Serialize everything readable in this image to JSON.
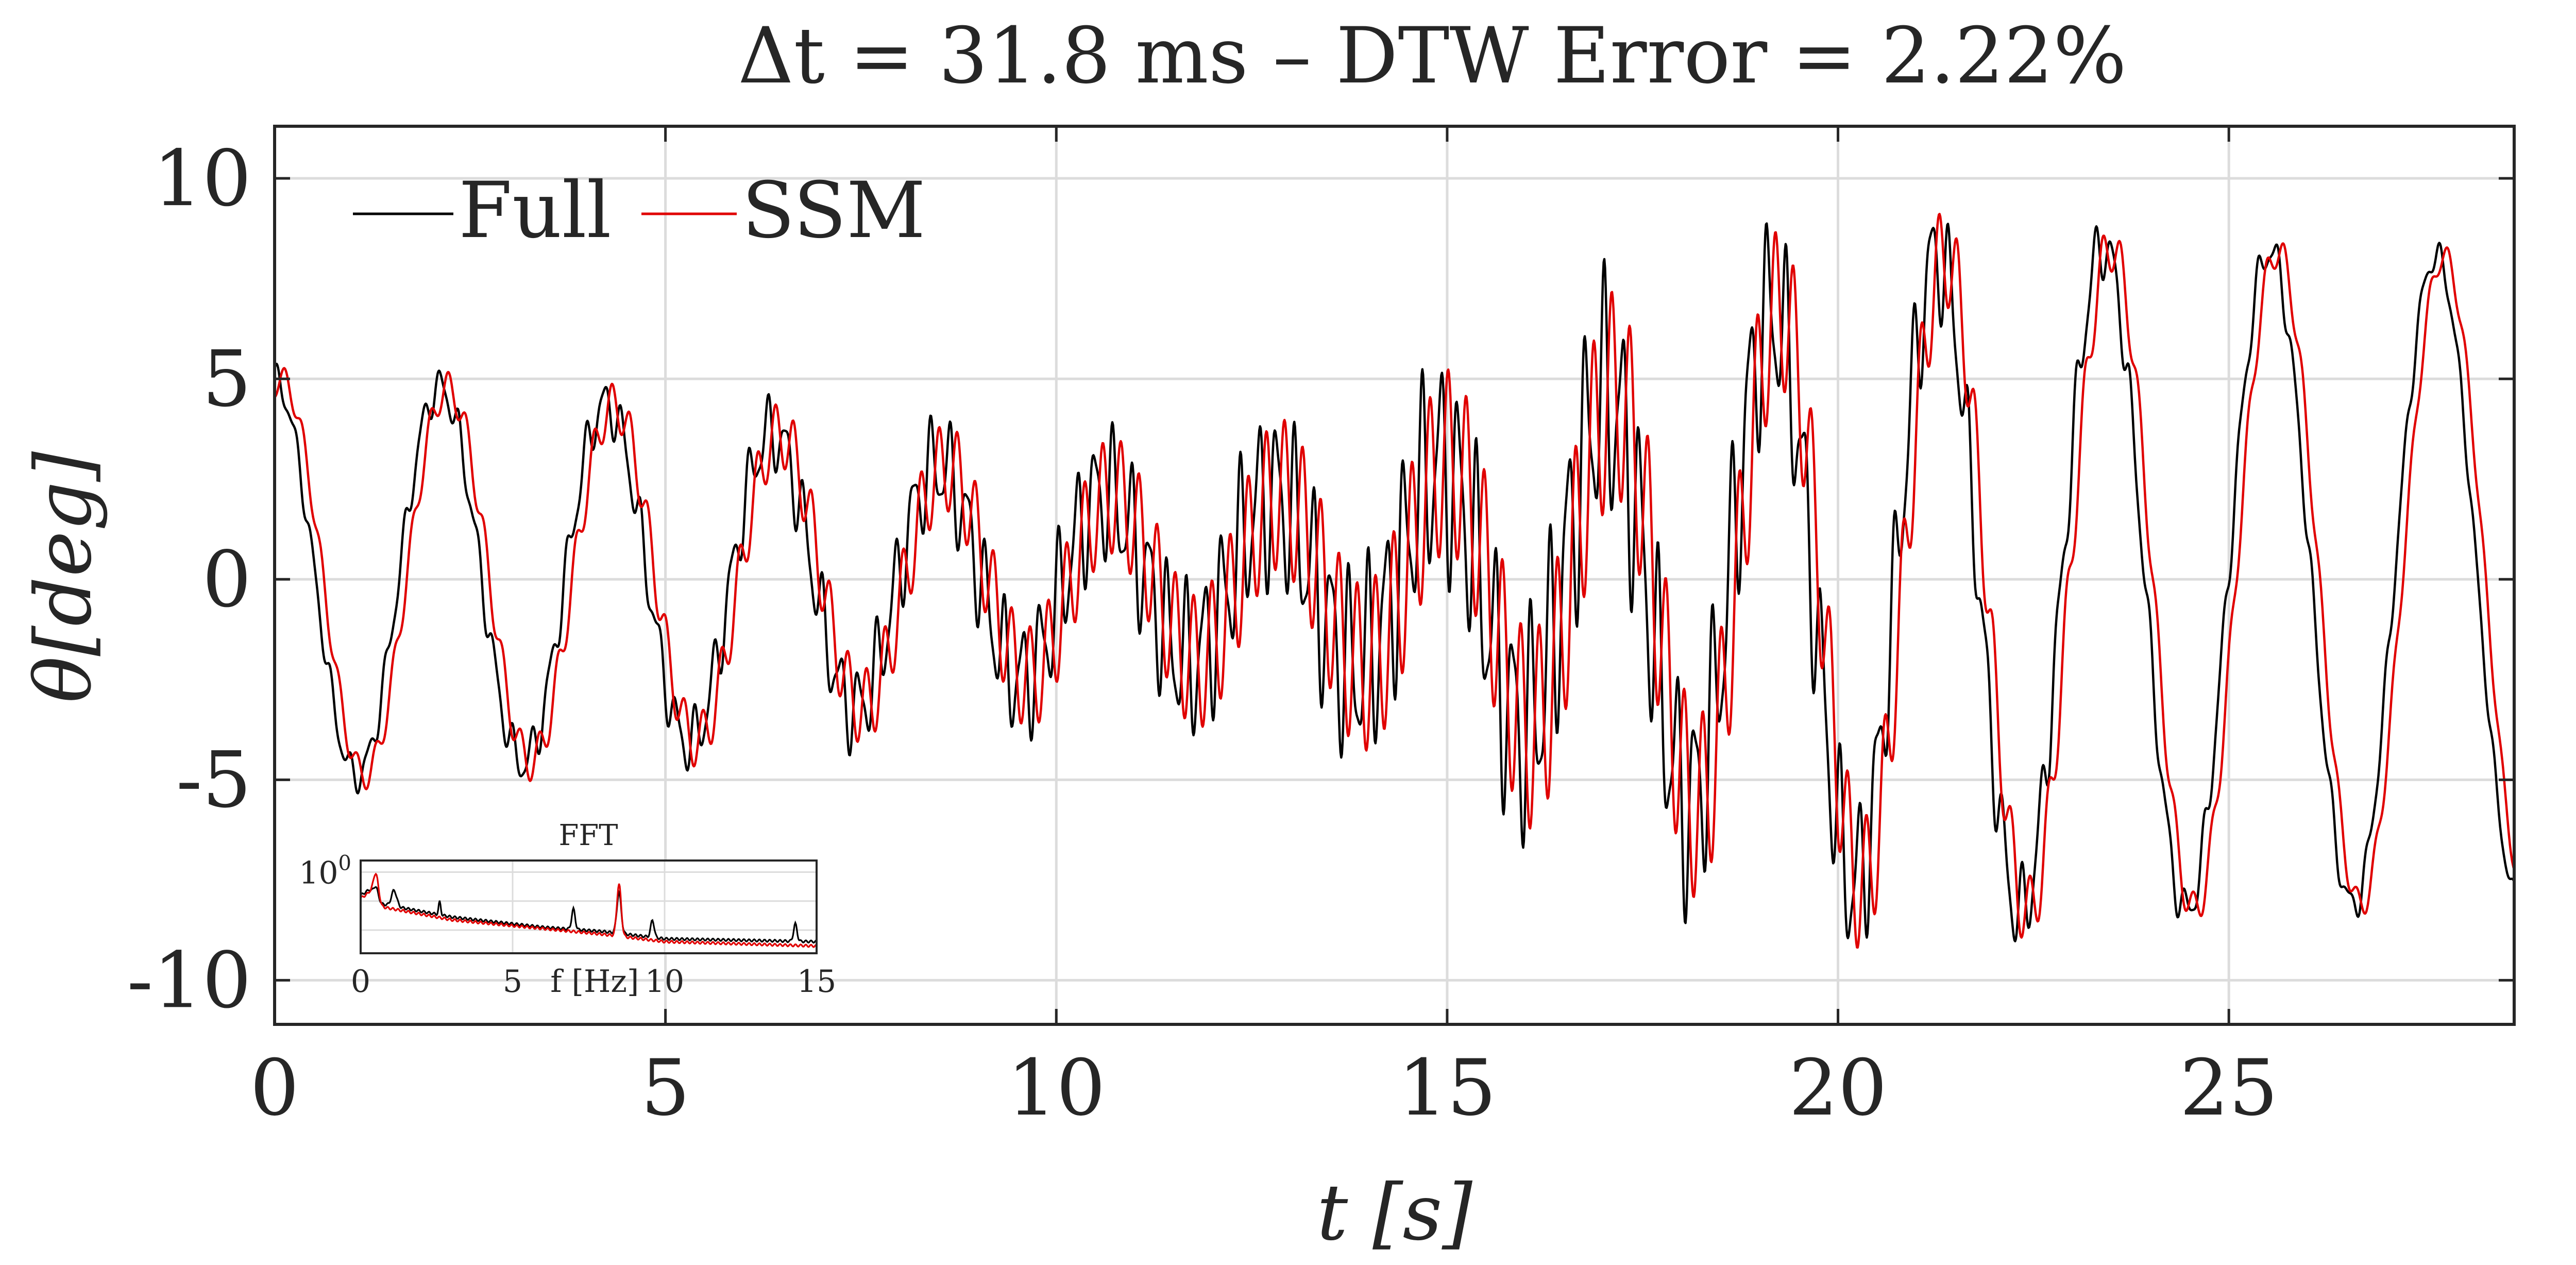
{
  "colors": {
    "full": "#000000",
    "ssm": "#e00000",
    "grid": "#dcdcdc",
    "axis": "#262626"
  },
  "chart_data": [
    {
      "type": "line",
      "title": "Δt = 31.8 ms – DTW Error = 2.22%",
      "xlabel": "t [s]",
      "ylabel": "θ[deg]",
      "xlim": [
        0,
        28.65
      ],
      "ylim": [
        -11.1,
        11.3
      ],
      "xticks": [
        0,
        5,
        10,
        15,
        20,
        25
      ],
      "xtick_labels": [
        "0",
        "5",
        "10",
        "15",
        "20",
        "25"
      ],
      "yticks": [
        -10,
        -5,
        0,
        5,
        10
      ],
      "ytick_labels": [
        "-10",
        "-5",
        "0",
        "5",
        "10"
      ],
      "grid": true,
      "legend": {
        "placement": "top-left",
        "orientation": "horizontal",
        "entries": [
          "Full",
          "SSM"
        ]
      },
      "series_params": {
        "slow_freq_hz": 0.47,
        "fast_freq_hz": 4.3,
        "envelope_t": [
          0,
          2,
          5,
          8,
          11,
          14,
          17,
          20,
          22,
          24,
          28.65
        ],
        "slow_amp": [
          5.0,
          4.8,
          4.2,
          3.0,
          2.0,
          2.2,
          4.5,
          7.5,
          8.3,
          8.3,
          8.0
        ],
        "fast_amp": [
          0.3,
          0.4,
          0.6,
          1.0,
          1.5,
          2.1,
          2.6,
          1.8,
          1.0,
          0.5,
          0.25
        ],
        "slow_phase_rad": 1.6,
        "fast_phase_rad": 0.8
      },
      "series": [
        {
          "name": "Full",
          "color": "#000000",
          "time_shift_s": 0.0,
          "extra_ripple": 0.35
        },
        {
          "name": "SSM",
          "color": "#e00000",
          "time_shift_s": 0.1,
          "extra_ripple": 0.0
        }
      ]
    },
    {
      "type": "line",
      "title": "FFT",
      "xlabel": "f [Hz]",
      "xlim": [
        0,
        15
      ],
      "xticks": [
        0,
        5,
        10,
        15
      ],
      "xtick_labels": [
        "0",
        "5",
        "10",
        "15"
      ],
      "yscale": "log",
      "ylim_log10": [
        -2.8,
        0.4
      ],
      "ytick_label": "10",
      "ytick_exponent": "0",
      "ytick_value": 1,
      "series": [
        {
          "name": "Full",
          "color": "#000000",
          "baseline_log10": [
            [
              0,
              -0.8
            ],
            [
              0.3,
              -0.6
            ],
            [
              0.7,
              -1.1
            ],
            [
              3,
              -1.55
            ],
            [
              6,
              -1.9
            ],
            [
              8,
              -2.05
            ],
            [
              10,
              -2.3
            ],
            [
              15,
              -2.4
            ]
          ],
          "peaks": [
            [
              0.5,
              0.35,
              0.1
            ],
            [
              1.1,
              0.55,
              0.12
            ],
            [
              2.6,
              0.45,
              0.05
            ],
            [
              7.0,
              0.7,
              0.08
            ],
            [
              8.5,
              1.4,
              0.1
            ],
            [
              9.6,
              0.6,
              0.08
            ],
            [
              14.3,
              0.6,
              0.08
            ]
          ]
        },
        {
          "name": "SSM",
          "color": "#e00000",
          "baseline_log10": [
            [
              0,
              -0.9
            ],
            [
              0.3,
              -0.7
            ],
            [
              0.7,
              -1.2
            ],
            [
              3,
              -1.65
            ],
            [
              6,
              -1.95
            ],
            [
              8,
              -2.15
            ],
            [
              10,
              -2.4
            ],
            [
              15,
              -2.55
            ]
          ],
          "peaks": [
            [
              0.5,
              0.9,
              0.12
            ],
            [
              8.5,
              1.8,
              0.1
            ]
          ]
        }
      ]
    }
  ]
}
